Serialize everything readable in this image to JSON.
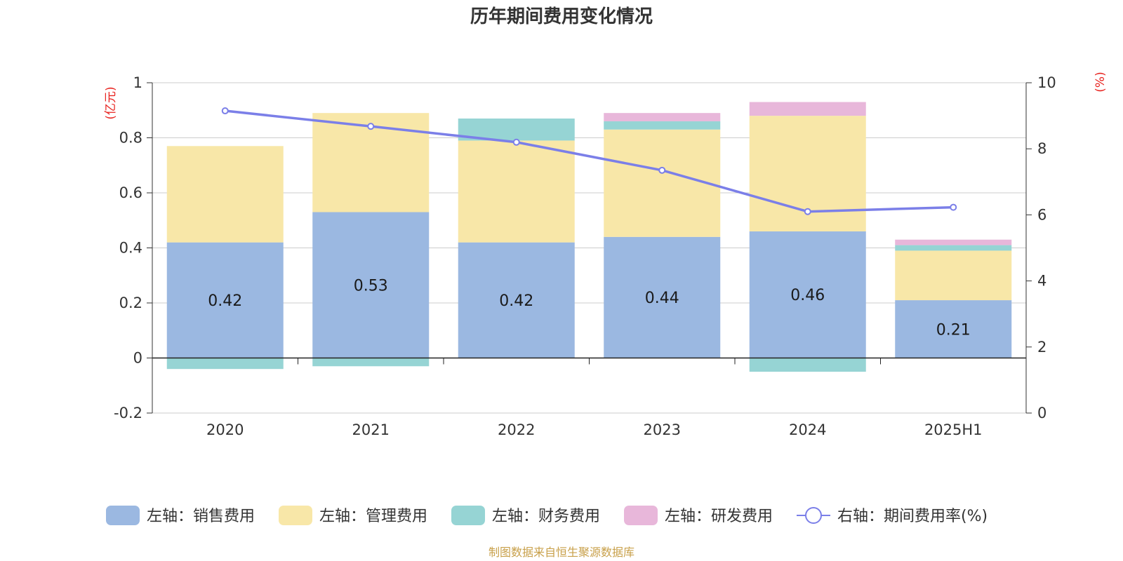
{
  "chart_data": {
    "type": "bar",
    "title": "历年期间费用变化情况",
    "left_unit": "(亿元)",
    "right_unit": "(%)",
    "categories": [
      "2020",
      "2021",
      "2022",
      "2023",
      "2024",
      "2025H1"
    ],
    "left_axis": {
      "ylim": [
        -0.2,
        1
      ],
      "ticks": [
        "-0.2",
        "0",
        "0.2",
        "0.4",
        "0.6",
        "0.8",
        "1"
      ]
    },
    "right_axis": {
      "ylim": [
        0,
        10
      ],
      "ticks": [
        "0",
        "2",
        "4",
        "6",
        "8",
        "10"
      ]
    },
    "grid": true,
    "legend_position": "bottom",
    "series": [
      {
        "name": "左轴：销售费用",
        "type": "bar",
        "axis": "left",
        "color": "#9bb8e1",
        "values": [
          0.42,
          0.53,
          0.42,
          0.44,
          0.46,
          0.21
        ],
        "labels": [
          "0.42",
          "0.53",
          "0.42",
          "0.44",
          "0.46",
          "0.21"
        ]
      },
      {
        "name": "左轴：管理费用",
        "type": "bar",
        "axis": "left",
        "color": "#f8e7a8",
        "values": [
          0.35,
          0.36,
          0.37,
          0.39,
          0.42,
          0.18
        ]
      },
      {
        "name": "左轴：财务费用",
        "type": "bar",
        "axis": "left",
        "color": "#96d4d4",
        "values": [
          -0.04,
          -0.03,
          0.08,
          0.03,
          -0.05,
          0.02
        ]
      },
      {
        "name": "左轴：研发费用",
        "type": "bar",
        "axis": "left",
        "color": "#e8b7da",
        "values": [
          0,
          0,
          0,
          0.03,
          0.05,
          0.02
        ]
      },
      {
        "name": "右轴：期间费用率(%)",
        "type": "line",
        "axis": "right",
        "color": "#7b7fe8",
        "values": [
          9.15,
          8.68,
          8.2,
          7.35,
          6.1,
          6.23
        ]
      }
    ],
    "source": "制图数据来自恒生聚源数据库"
  }
}
